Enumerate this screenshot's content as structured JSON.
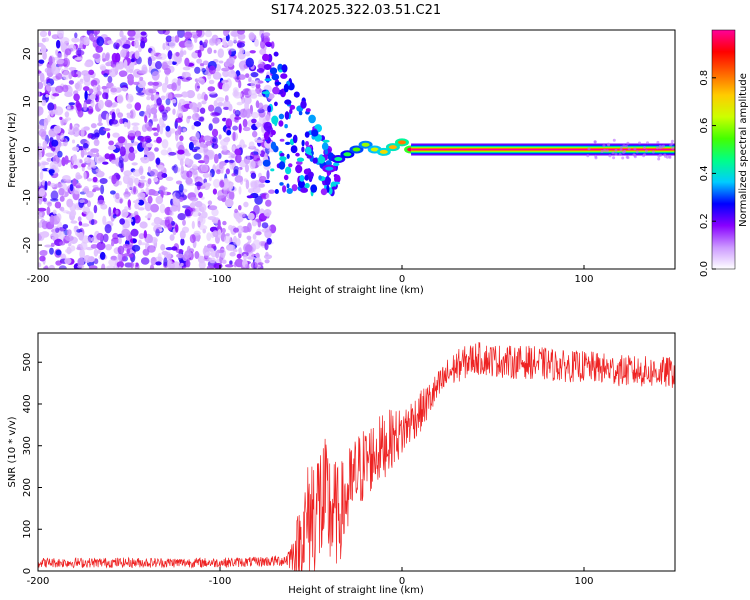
{
  "title": "S174.2025.322.03.51.C21",
  "chart_data": [
    {
      "type": "heatmap",
      "title": "S174.2025.322.03.51.C21",
      "xlabel": "Height of straight line (km)",
      "ylabel": "Frequency (Hz)",
      "xlim": [
        -200,
        150
      ],
      "ylim": [
        -25,
        25
      ],
      "xticks": [
        -200,
        -100,
        0,
        100
      ],
      "yticks": [
        -20,
        -10,
        0,
        10,
        20
      ],
      "colorbar": {
        "label": "Normalized spectral amplitude",
        "range": [
          0,
          1
        ],
        "ticks": [
          "0.0",
          "0.2",
          "0.4",
          "0.6",
          "0.8"
        ],
        "colors": [
          "#ffffff",
          "#cc99ff",
          "#8800ff",
          "#0000ff",
          "#00ccff",
          "#00ff88",
          "#44ff00",
          "#ccff00",
          "#ffcc00",
          "#ff6600",
          "#ff0000",
          "#ff0099"
        ]
      },
      "noise_region_x": [
        -200,
        -75
      ],
      "transition_region_x": [
        -75,
        -35
      ],
      "signal_line": {
        "x_start": 5,
        "x_end": 150,
        "frequency": 0,
        "amplitude": 1.0
      },
      "signal_path": [
        {
          "x": -40,
          "f": -4,
          "a": 0.35
        },
        {
          "x": -35,
          "f": -2,
          "a": 0.45
        },
        {
          "x": -30,
          "f": -1,
          "a": 0.5
        },
        {
          "x": -25,
          "f": 0,
          "a": 0.55
        },
        {
          "x": -20,
          "f": 1,
          "a": 0.6
        },
        {
          "x": -15,
          "f": 0,
          "a": 0.65
        },
        {
          "x": -10,
          "f": -0.5,
          "a": 0.7
        },
        {
          "x": -5,
          "f": 0.5,
          "a": 0.75
        },
        {
          "x": 0,
          "f": 1.5,
          "a": 0.8
        },
        {
          "x": 5,
          "f": 0,
          "a": 0.95
        }
      ]
    },
    {
      "type": "line",
      "xlabel": "Height of straight line (km)",
      "ylabel": "SNR (10 * v/v)",
      "xlim": [
        -200,
        150
      ],
      "ylim": [
        0,
        570
      ],
      "xticks": [
        -200,
        -100,
        0,
        100
      ],
      "yticks": [
        0,
        100,
        200,
        300,
        400,
        500
      ],
      "color": "#ee2222",
      "series": [
        {
          "name": "SNR",
          "x": [
            -200,
            -150,
            -100,
            -80,
            -65,
            -60,
            -55,
            -50,
            -45,
            -40,
            -35,
            -30,
            -25,
            -20,
            -15,
            -10,
            -5,
            0,
            5,
            10,
            15,
            20,
            25,
            30,
            40,
            50,
            60,
            70,
            80,
            90,
            100,
            110,
            120,
            130,
            140,
            150
          ],
          "values": [
            20,
            20,
            20,
            22,
            25,
            40,
            80,
            140,
            160,
            150,
            130,
            180,
            230,
            260,
            280,
            300,
            320,
            330,
            360,
            380,
            410,
            440,
            470,
            490,
            510,
            505,
            500,
            500,
            495,
            490,
            490,
            485,
            480,
            478,
            476,
            475
          ],
          "spread": [
            12,
            12,
            12,
            12,
            14,
            40,
            110,
            160,
            170,
            160,
            120,
            110,
            100,
            90,
            85,
            80,
            70,
            60,
            55,
            50,
            45,
            40,
            40,
            40,
            40,
            40,
            40,
            40,
            40,
            38,
            38,
            38,
            38,
            38,
            38,
            38
          ]
        }
      ]
    }
  ]
}
